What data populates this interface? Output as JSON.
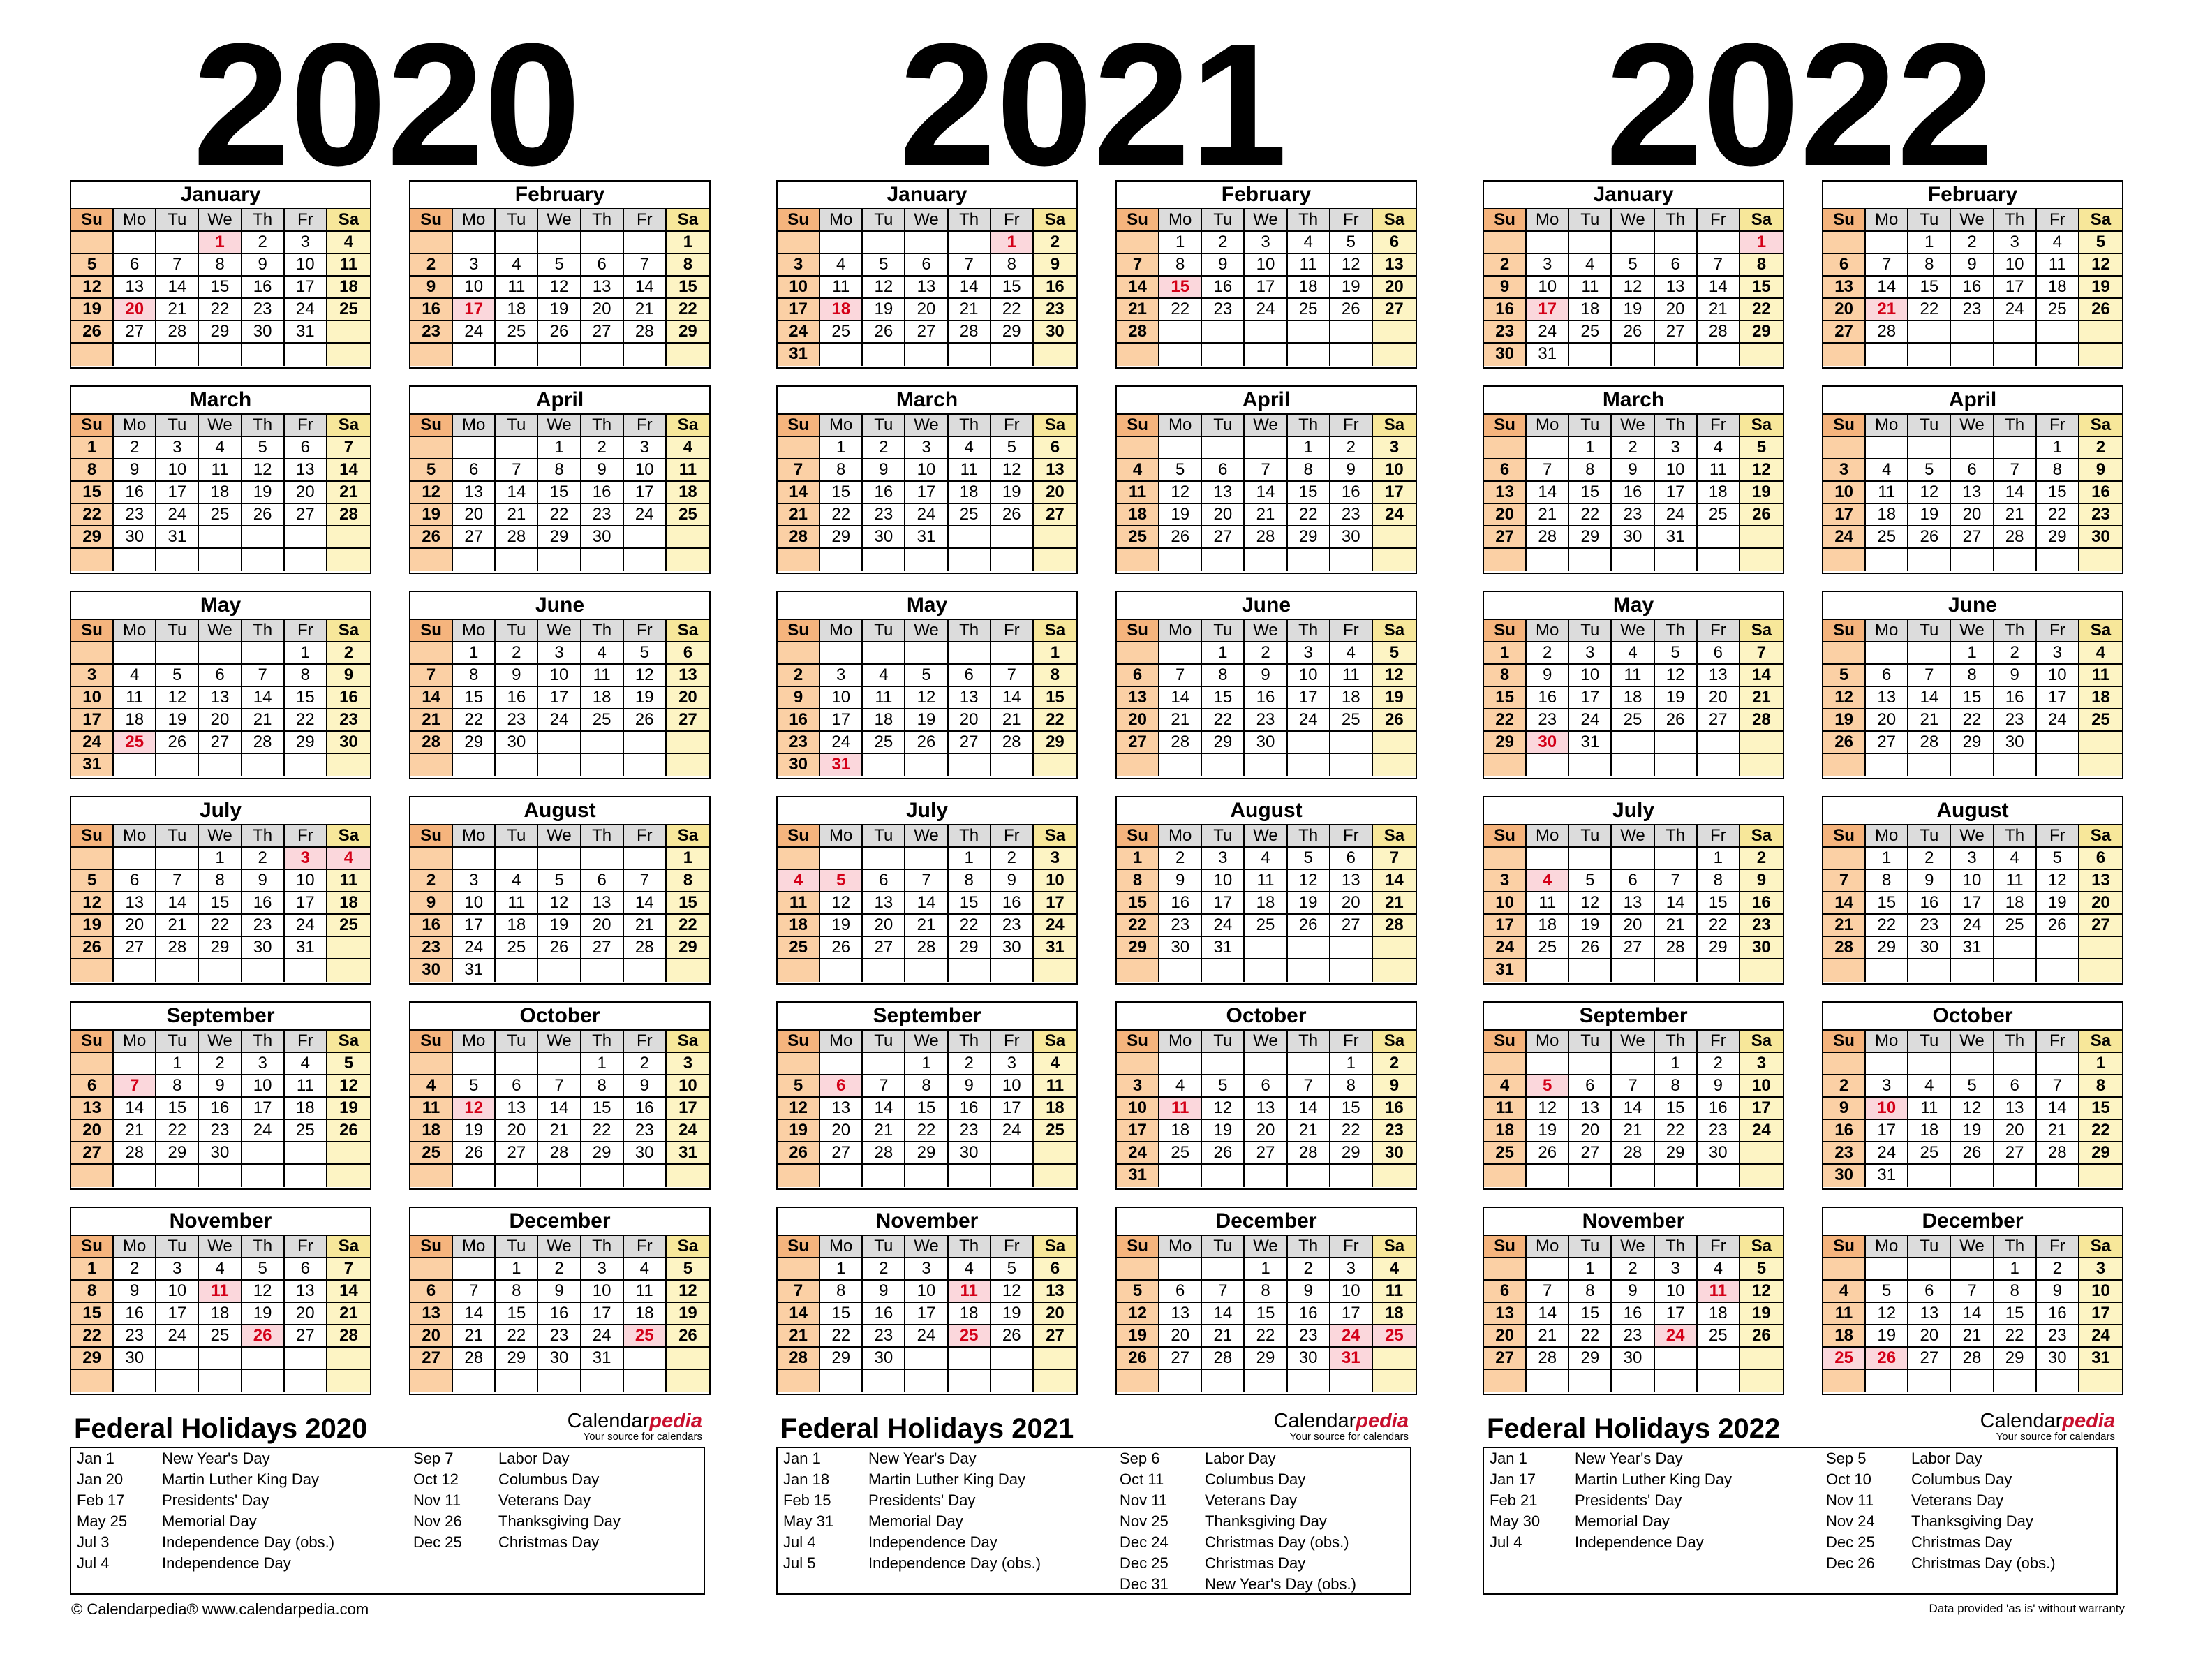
{
  "week_header": [
    "Su",
    "Mo",
    "Tu",
    "We",
    "Th",
    "Fr",
    "Sa"
  ],
  "years": [
    {
      "year": "2020",
      "months": [
        {
          "name": "January",
          "start": 3,
          "days": 31,
          "holidays": [
            1,
            20
          ]
        },
        {
          "name": "February",
          "start": 6,
          "days": 29,
          "holidays": [
            17
          ]
        },
        {
          "name": "March",
          "start": 0,
          "days": 31,
          "holidays": []
        },
        {
          "name": "April",
          "start": 3,
          "days": 30,
          "holidays": []
        },
        {
          "name": "May",
          "start": 5,
          "days": 31,
          "holidays": [
            25
          ]
        },
        {
          "name": "June",
          "start": 1,
          "days": 30,
          "holidays": []
        },
        {
          "name": "July",
          "start": 3,
          "days": 31,
          "holidays": [
            3,
            4
          ]
        },
        {
          "name": "August",
          "start": 6,
          "days": 31,
          "holidays": []
        },
        {
          "name": "September",
          "start": 2,
          "days": 30,
          "holidays": [
            7
          ]
        },
        {
          "name": "October",
          "start": 4,
          "days": 31,
          "holidays": [
            12
          ]
        },
        {
          "name": "November",
          "start": 0,
          "days": 30,
          "holidays": [
            11,
            26
          ]
        },
        {
          "name": "December",
          "start": 2,
          "days": 31,
          "holidays": [
            25
          ]
        }
      ],
      "federal_title": "Federal Holidays 2020",
      "holidays_left": [
        {
          "date": "Jan 1",
          "name": "New Year's Day"
        },
        {
          "date": "Jan 20",
          "name": "Martin Luther King Day"
        },
        {
          "date": "Feb 17",
          "name": "Presidents' Day"
        },
        {
          "date": "May 25",
          "name": "Memorial Day"
        },
        {
          "date": "Jul 3",
          "name": "Independence Day (obs.)"
        },
        {
          "date": "Jul 4",
          "name": "Independence Day"
        }
      ],
      "holidays_right": [
        {
          "date": "Sep 7",
          "name": "Labor Day"
        },
        {
          "date": "Oct 12",
          "name": "Columbus Day"
        },
        {
          "date": "Nov 11",
          "name": "Veterans Day"
        },
        {
          "date": "Nov 26",
          "name": "Thanksgiving Day"
        },
        {
          "date": "Dec 25",
          "name": "Christmas Day"
        }
      ]
    },
    {
      "year": "2021",
      "months": [
        {
          "name": "January",
          "start": 5,
          "days": 31,
          "holidays": [
            1,
            18
          ]
        },
        {
          "name": "February",
          "start": 1,
          "days": 28,
          "holidays": [
            15
          ]
        },
        {
          "name": "March",
          "start": 1,
          "days": 31,
          "holidays": []
        },
        {
          "name": "April",
          "start": 4,
          "days": 30,
          "holidays": []
        },
        {
          "name": "May",
          "start": 6,
          "days": 31,
          "holidays": [
            31
          ]
        },
        {
          "name": "June",
          "start": 2,
          "days": 30,
          "holidays": []
        },
        {
          "name": "July",
          "start": 4,
          "days": 31,
          "holidays": [
            4,
            5
          ]
        },
        {
          "name": "August",
          "start": 0,
          "days": 31,
          "holidays": []
        },
        {
          "name": "September",
          "start": 3,
          "days": 30,
          "holidays": [
            6
          ]
        },
        {
          "name": "October",
          "start": 5,
          "days": 31,
          "holidays": [
            11
          ]
        },
        {
          "name": "November",
          "start": 1,
          "days": 30,
          "holidays": [
            11,
            25
          ]
        },
        {
          "name": "December",
          "start": 3,
          "days": 31,
          "holidays": [
            24,
            25,
            31
          ]
        }
      ],
      "federal_title": "Federal Holidays 2021",
      "holidays_left": [
        {
          "date": "Jan 1",
          "name": "New Year's Day"
        },
        {
          "date": "Jan 18",
          "name": "Martin Luther King Day"
        },
        {
          "date": "Feb 15",
          "name": "Presidents' Day"
        },
        {
          "date": "May 31",
          "name": "Memorial Day"
        },
        {
          "date": "Jul 4",
          "name": "Independence Day"
        },
        {
          "date": "Jul 5",
          "name": "Independence Day (obs.)"
        }
      ],
      "holidays_right": [
        {
          "date": "Sep 6",
          "name": "Labor Day"
        },
        {
          "date": "Oct 11",
          "name": "Columbus Day"
        },
        {
          "date": "Nov 11",
          "name": "Veterans Day"
        },
        {
          "date": "Nov 25",
          "name": "Thanksgiving Day"
        },
        {
          "date": "Dec 24",
          "name": "Christmas Day (obs.)"
        },
        {
          "date": "Dec 25",
          "name": "Christmas Day"
        },
        {
          "date": "Dec 31",
          "name": "New Year's Day (obs.)"
        }
      ]
    },
    {
      "year": "2022",
      "months": [
        {
          "name": "January",
          "start": 6,
          "days": 31,
          "holidays": [
            1,
            17
          ]
        },
        {
          "name": "February",
          "start": 2,
          "days": 28,
          "holidays": [
            21
          ]
        },
        {
          "name": "March",
          "start": 2,
          "days": 31,
          "holidays": []
        },
        {
          "name": "April",
          "start": 5,
          "days": 30,
          "holidays": []
        },
        {
          "name": "May",
          "start": 0,
          "days": 31,
          "holidays": [
            30
          ]
        },
        {
          "name": "June",
          "start": 3,
          "days": 30,
          "holidays": []
        },
        {
          "name": "July",
          "start": 5,
          "days": 31,
          "holidays": [
            4
          ]
        },
        {
          "name": "August",
          "start": 1,
          "days": 31,
          "holidays": []
        },
        {
          "name": "September",
          "start": 4,
          "days": 30,
          "holidays": [
            5
          ]
        },
        {
          "name": "October",
          "start": 6,
          "days": 31,
          "holidays": [
            10
          ]
        },
        {
          "name": "November",
          "start": 2,
          "days": 30,
          "holidays": [
            11,
            24
          ]
        },
        {
          "name": "December",
          "start": 4,
          "days": 31,
          "holidays": [
            25,
            26
          ]
        }
      ],
      "federal_title": "Federal Holidays 2022",
      "holidays_left": [
        {
          "date": "Jan 1",
          "name": "New Year's Day"
        },
        {
          "date": "Jan 17",
          "name": "Martin Luther King Day"
        },
        {
          "date": "Feb 21",
          "name": "Presidents' Day"
        },
        {
          "date": "May 30",
          "name": "Memorial Day"
        },
        {
          "date": "Jul 4",
          "name": "Independence Day"
        }
      ],
      "holidays_right": [
        {
          "date": "Sep 5",
          "name": "Labor Day"
        },
        {
          "date": "Oct 10",
          "name": "Columbus Day"
        },
        {
          "date": "Nov 11",
          "name": "Veterans Day"
        },
        {
          "date": "Nov 24",
          "name": "Thanksgiving Day"
        },
        {
          "date": "Dec 25",
          "name": "Christmas Day"
        },
        {
          "date": "Dec 26",
          "name": "Christmas Day (obs.)"
        }
      ]
    }
  ],
  "brand": {
    "name_main": "Calendar",
    "name_accent": "pedia",
    "tagline": "Your source for calendars"
  },
  "footer": {
    "copyright": "© Calendarpedia®   www.calendarpedia.com",
    "disclaimer": "Data provided 'as is' without warranty"
  },
  "colors": {
    "sunday_header": "#f5b47d",
    "saturday_header": "#f7e79a",
    "sunday": "#fbd0a5",
    "saturday": "#fdf4c4",
    "holiday_bg": "#fbd7dc",
    "holiday_text": "#d40018"
  }
}
